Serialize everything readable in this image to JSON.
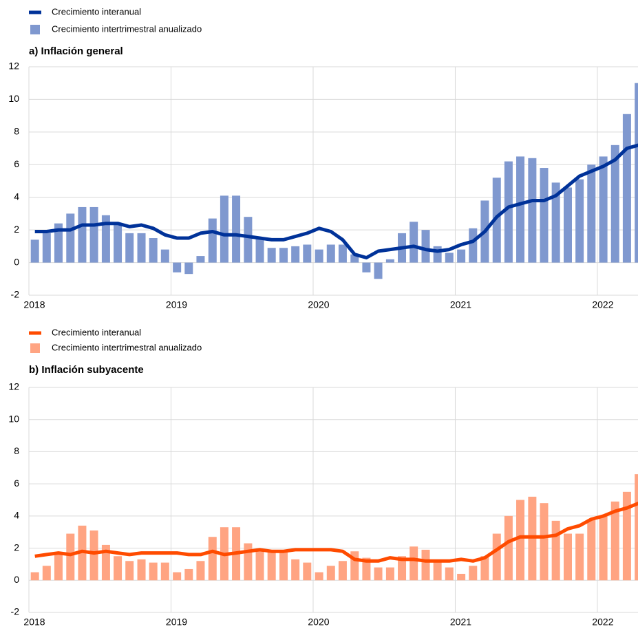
{
  "chart_data": [
    {
      "type": "combo",
      "title": "a) Inflación general",
      "x": [
        2018.042,
        2018.125,
        2018.208,
        2018.292,
        2018.375,
        2018.458,
        2018.542,
        2018.625,
        2018.708,
        2018.792,
        2018.875,
        2018.958,
        2019.042,
        2019.125,
        2019.208,
        2019.292,
        2019.375,
        2019.458,
        2019.542,
        2019.625,
        2019.708,
        2019.792,
        2019.875,
        2019.958,
        2020.042,
        2020.125,
        2020.208,
        2020.292,
        2020.375,
        2020.458,
        2020.542,
        2020.625,
        2020.708,
        2020.792,
        2020.875,
        2020.958,
        2021.042,
        2021.125,
        2021.208,
        2021.292,
        2021.375,
        2021.458,
        2021.542,
        2021.625,
        2021.708,
        2021.792,
        2021.875,
        2021.958,
        2022.042,
        2022.125,
        2022.208,
        2022.292
      ],
      "series": [
        {
          "name": "Crecimiento interanual",
          "type": "line",
          "color": "#003299",
          "values": [
            1.9,
            1.9,
            2.0,
            2.0,
            2.3,
            2.3,
            2.4,
            2.4,
            2.2,
            2.3,
            2.1,
            1.7,
            1.5,
            1.5,
            1.8,
            1.9,
            1.7,
            1.7,
            1.6,
            1.5,
            1.4,
            1.4,
            1.6,
            1.8,
            2.1,
            1.9,
            1.4,
            0.5,
            0.3,
            0.7,
            0.8,
            0.9,
            1.0,
            0.8,
            0.7,
            0.8,
            1.1,
            1.3,
            1.9,
            2.8,
            3.4,
            3.6,
            3.8,
            3.8,
            4.1,
            4.7,
            5.3,
            5.6,
            5.9,
            6.3,
            7.0,
            7.2
          ]
        },
        {
          "name": "Crecimiento intertrimestral anualizado",
          "type": "bar",
          "color": "#7f98cf",
          "values": [
            1.4,
            1.8,
            2.4,
            3.0,
            3.4,
            3.4,
            2.9,
            2.3,
            1.8,
            1.8,
            1.5,
            0.8,
            -0.6,
            -0.7,
            0.4,
            2.7,
            4.1,
            4.1,
            2.8,
            1.5,
            0.9,
            0.9,
            1.0,
            1.1,
            0.8,
            1.1,
            1.1,
            0.5,
            -0.6,
            -1.0,
            0.2,
            1.8,
            2.5,
            2.0,
            1.0,
            0.6,
            0.8,
            2.1,
            3.8,
            5.2,
            6.2,
            6.5,
            6.4,
            5.8,
            4.9,
            4.6,
            5.1,
            6.0,
            6.5,
            7.2,
            9.1,
            11.0
          ]
        }
      ],
      "xlim": [
        2018,
        2022.286
      ],
      "xticks": [
        2018,
        2019,
        2020,
        2021,
        2022
      ],
      "ylim": [
        -2,
        12
      ],
      "yticks": [
        -2,
        0,
        2,
        4,
        6,
        8,
        10,
        12
      ],
      "grid": true
    },
    {
      "type": "combo",
      "title": "b) Inflación subyacente",
      "x": [
        2018.042,
        2018.125,
        2018.208,
        2018.292,
        2018.375,
        2018.458,
        2018.542,
        2018.625,
        2018.708,
        2018.792,
        2018.875,
        2018.958,
        2019.042,
        2019.125,
        2019.208,
        2019.292,
        2019.375,
        2019.458,
        2019.542,
        2019.625,
        2019.708,
        2019.792,
        2019.875,
        2019.958,
        2020.042,
        2020.125,
        2020.208,
        2020.292,
        2020.375,
        2020.458,
        2020.542,
        2020.625,
        2020.708,
        2020.792,
        2020.875,
        2020.958,
        2021.042,
        2021.125,
        2021.208,
        2021.292,
        2021.375,
        2021.458,
        2021.542,
        2021.625,
        2021.708,
        2021.792,
        2021.875,
        2021.958,
        2022.042,
        2022.125,
        2022.208,
        2022.292
      ],
      "series": [
        {
          "name": "Crecimiento interanual",
          "type": "line",
          "color": "#ff4b00",
          "values": [
            1.5,
            1.6,
            1.7,
            1.6,
            1.8,
            1.7,
            1.8,
            1.7,
            1.6,
            1.7,
            1.7,
            1.7,
            1.7,
            1.6,
            1.6,
            1.8,
            1.6,
            1.7,
            1.8,
            1.9,
            1.8,
            1.8,
            1.9,
            1.9,
            1.9,
            1.9,
            1.8,
            1.3,
            1.2,
            1.2,
            1.4,
            1.3,
            1.3,
            1.2,
            1.2,
            1.2,
            1.3,
            1.2,
            1.4,
            1.9,
            2.4,
            2.7,
            2.7,
            2.7,
            2.8,
            3.2,
            3.4,
            3.8,
            4.0,
            4.3,
            4.5,
            4.8
          ]
        },
        {
          "name": "Crecimiento intertrimestral anualizado",
          "type": "bar",
          "color": "#ffa482",
          "values": [
            0.5,
            0.9,
            1.6,
            2.9,
            3.4,
            3.1,
            2.2,
            1.5,
            1.2,
            1.3,
            1.1,
            1.1,
            0.5,
            0.7,
            1.2,
            2.7,
            3.3,
            3.3,
            2.3,
            1.8,
            1.8,
            1.8,
            1.3,
            1.1,
            0.5,
            0.9,
            1.2,
            1.8,
            1.4,
            0.8,
            0.8,
            1.5,
            2.1,
            1.9,
            1.2,
            0.8,
            0.4,
            0.9,
            1.5,
            2.9,
            4.0,
            5.0,
            5.2,
            4.8,
            3.7,
            2.9,
            2.9,
            3.8,
            4.0,
            4.9,
            5.5,
            6.6
          ]
        }
      ],
      "xlim": [
        2018,
        2022.286
      ],
      "xticks": [
        2018,
        2019,
        2020,
        2021,
        2022
      ],
      "ylim": [
        -2,
        12
      ],
      "yticks": [
        -2,
        0,
        2,
        4,
        6,
        8,
        10,
        12
      ],
      "grid": true
    }
  ]
}
